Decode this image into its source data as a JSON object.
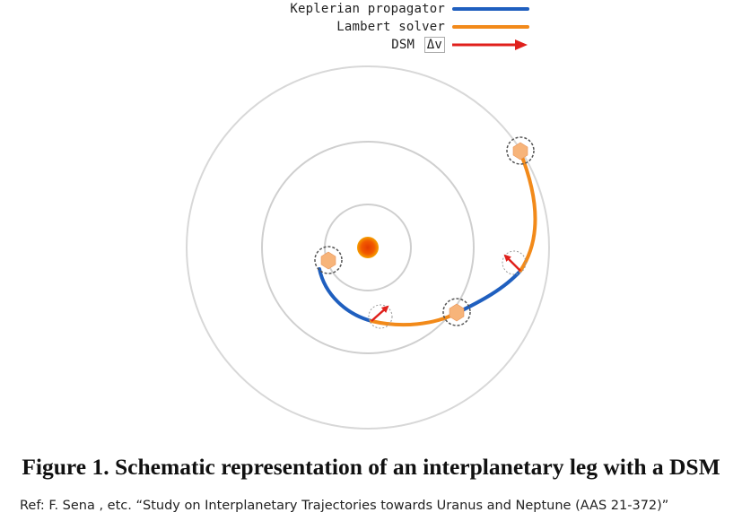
{
  "legend": {
    "keplerian": {
      "label": "Keplerian propagator",
      "color": "#1f5fbf"
    },
    "lambert": {
      "label": "Lambert solver",
      "color": "#f28a1a"
    },
    "dsm": {
      "label": "DSM",
      "symbol": "Δv",
      "color": "#e0201c"
    }
  },
  "caption": "Figure 1.  Schematic representation of an interplanetary leg with a DSM",
  "reference": "Ref: F. Sena , etc. “Study on Interplanetary Trajectories towards Uranus and Neptune (AAS 21-372)”",
  "colors": {
    "sun_core": "#f25a00",
    "sun_edge": "#f5a000",
    "planet": "#f7b47a",
    "orbit": "#cfcfcf"
  }
}
